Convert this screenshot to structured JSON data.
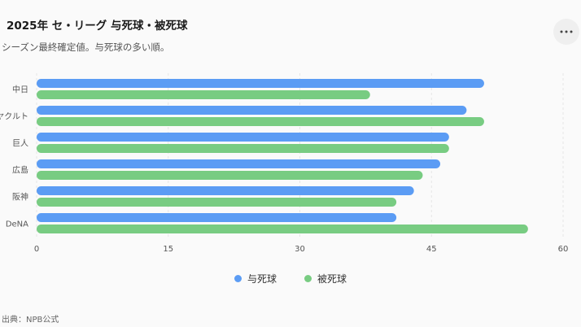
{
  "header": {
    "title": "2025年 セ・リーグ 与死球・被死球",
    "subtitle": "シーズン最終確定値。与死球の多い順。"
  },
  "menu": {
    "icon": "more-horizontal-icon"
  },
  "source": {
    "text": "出典：NPB公式"
  },
  "colors": {
    "series_given": "#5b9cf4",
    "series_received": "#78cc82",
    "grid": "#e6e6e6",
    "axis_text": "#555555"
  },
  "chart_data": {
    "type": "bar",
    "orientation": "horizontal",
    "categories": [
      "中日",
      "ヤクルト",
      "巨人",
      "広島",
      "阪神",
      "DeNA"
    ],
    "series": [
      {
        "name": "与死球",
        "values": [
          51,
          49,
          47,
          46,
          43,
          41
        ]
      },
      {
        "name": "被死球",
        "values": [
          38,
          51,
          47,
          44,
          41,
          56
        ]
      }
    ],
    "xlim": [
      0,
      60
    ],
    "xticks": [
      0,
      15,
      30,
      45,
      60
    ],
    "grid": "dashed vertical",
    "legend_position": "bottom-center"
  }
}
